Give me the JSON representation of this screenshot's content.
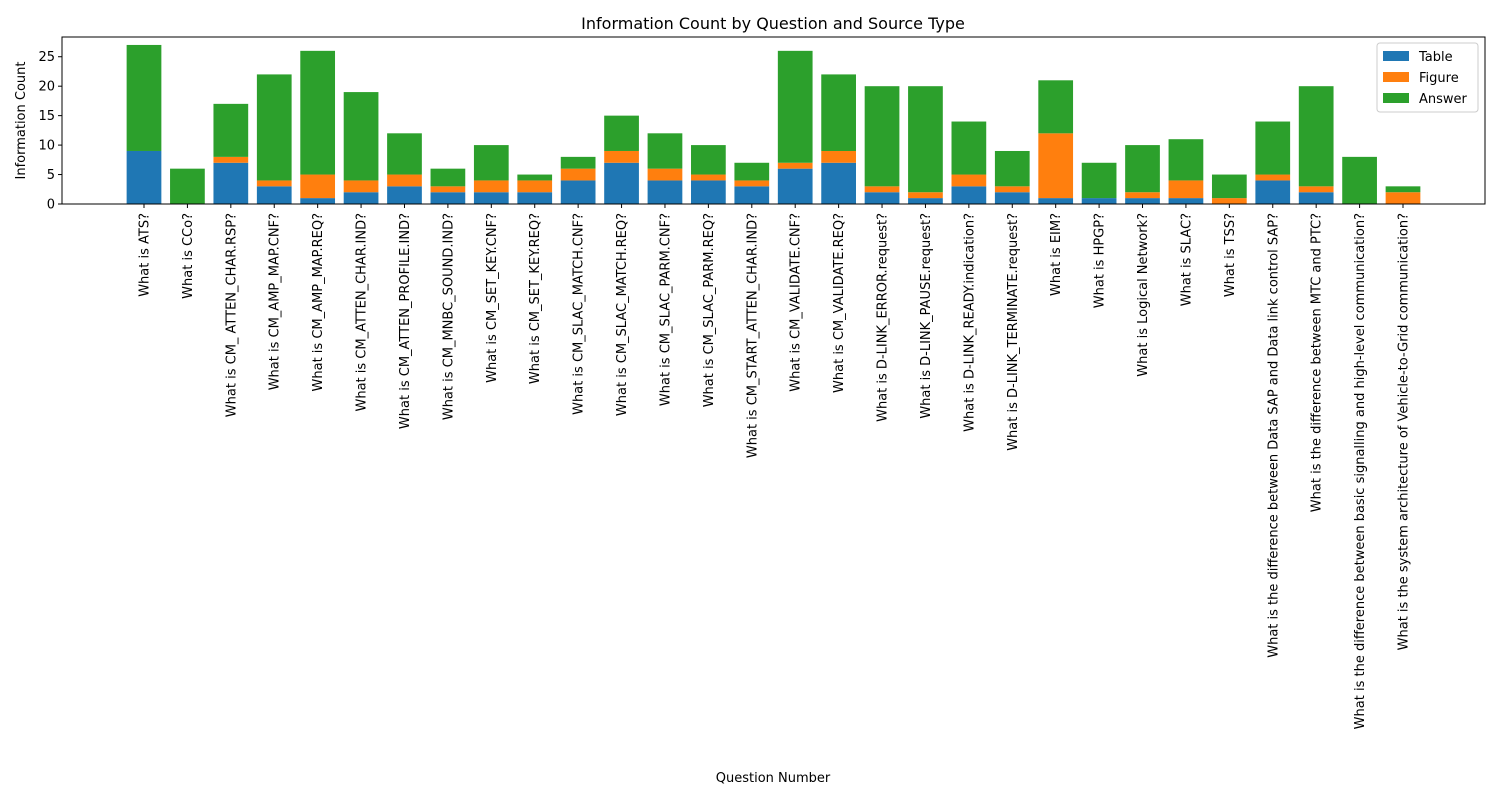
{
  "chart_data": {
    "type": "bar",
    "stacked": true,
    "title": "Information Count by Question and Source Type",
    "xlabel": "Question Number",
    "ylabel": "Information Count",
    "ylim": [
      0,
      28.35
    ],
    "yticks": [
      0,
      5,
      10,
      15,
      20,
      25
    ],
    "grid": false,
    "legend_position": "top-right",
    "categories": [
      "What is ATS?",
      "What is CCo?",
      "What is CM_ ATTEN_CHAR.RSP?",
      "What is CM_AMP_MAP.CNF?",
      "What is CM_AMP_MAP.REQ?",
      "What is CM_ATTEN_CHAR.IND?",
      "What is CM_ATTEN_PROFILE.IND?",
      "What is CM_MNBC_SOUND.IND?",
      "What is CM_SET_KEY.CNF?",
      "What is CM_SET_KEY.REQ?",
      "What is CM_SLAC_MATCH.CNF?",
      "What is CM_SLAC_MATCH.REQ?",
      "What is CM_SLAC_PARM.CNF?",
      "What is CM_SLAC_PARM.REQ?",
      "What is CM_START_ATTEN_CHAR.IND?",
      "What is CM_VALIDATE.CNF?",
      "What is CM_VALIDATE.REQ?",
      "What is D-LINK_ERROR.request?",
      "What is D-LINK_PAUSE.request?",
      "What is D-LINK_READY.indication?",
      "What is D-LINK_TERMINATE.request?",
      "What is EIM?",
      "What is HPGP?",
      "What is Logical Network?",
      "What is SLAC?",
      "What is TSS?",
      "What is the difference between Data SAP and Data link control SAP?",
      "What is the difference between MTC and PTC?",
      "What is the difference between basic signalling and high-level communication?",
      "What is the system architecture of Vehicle-to-Grid communication?"
    ],
    "series": [
      {
        "name": "Table",
        "color": "#1f77b4",
        "values": [
          9,
          0,
          7,
          3,
          1,
          2,
          3,
          2,
          2,
          2,
          4,
          7,
          4,
          4,
          3,
          6,
          7,
          2,
          1,
          3,
          2,
          1,
          1,
          1,
          1,
          0,
          4,
          2,
          0,
          0
        ]
      },
      {
        "name": "Figure",
        "color": "#ff7f0e",
        "values": [
          0,
          0,
          1,
          1,
          4,
          2,
          2,
          1,
          2,
          2,
          2,
          2,
          2,
          1,
          1,
          1,
          2,
          1,
          1,
          2,
          1,
          11,
          0,
          1,
          3,
          1,
          1,
          1,
          0,
          2
        ]
      },
      {
        "name": "Answer",
        "color": "#2ca02c",
        "values": [
          18,
          6,
          9,
          18,
          21,
          15,
          7,
          3,
          6,
          1,
          2,
          6,
          6,
          5,
          3,
          19,
          13,
          17,
          18,
          9,
          6,
          9,
          6,
          8,
          7,
          4,
          9,
          17,
          8,
          1
        ]
      }
    ]
  }
}
